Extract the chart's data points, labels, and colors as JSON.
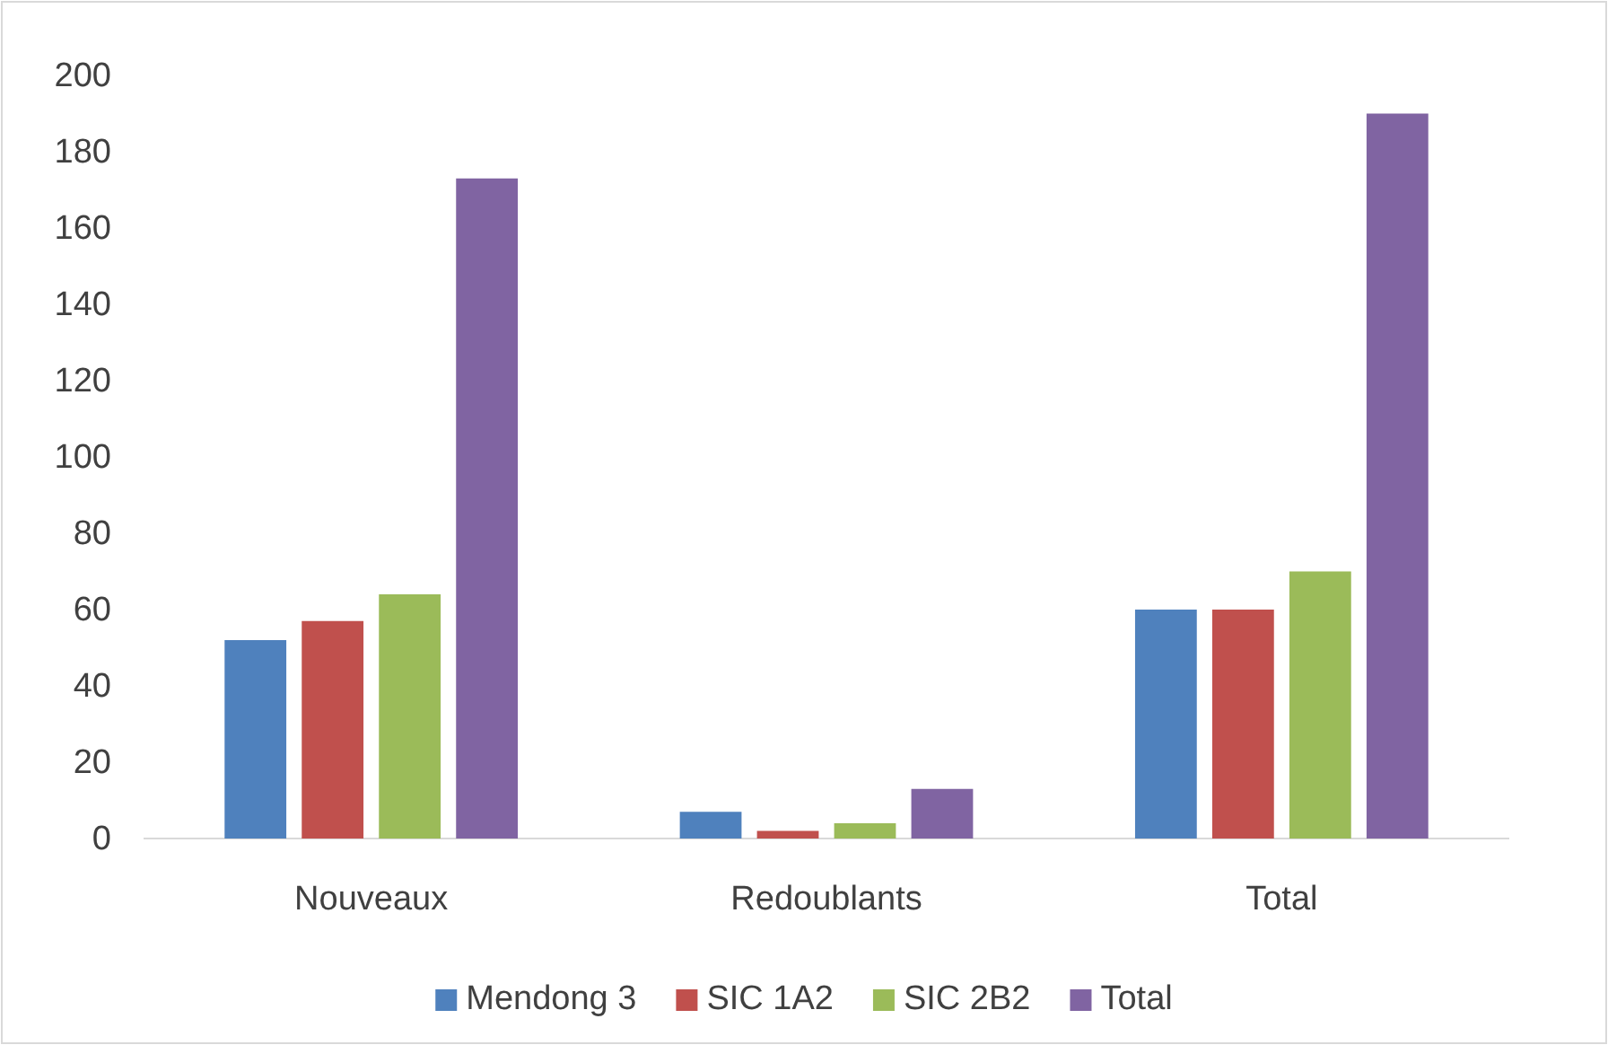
{
  "chart_data": {
    "type": "bar",
    "categories": [
      "Nouveaux",
      "Redoublants",
      "Total"
    ],
    "series": [
      {
        "name": "Mendong 3",
        "color": "#4f81bd",
        "values": [
          52,
          7,
          60
        ]
      },
      {
        "name": "SIC 1A2",
        "color": "#c0504d",
        "values": [
          57,
          2,
          60
        ]
      },
      {
        "name": "SIC 2B2",
        "color": "#9bbb59",
        "values": [
          64,
          4,
          70
        ]
      },
      {
        "name": "Total",
        "color": "#8064a2",
        "values": [
          173,
          13,
          190
        ]
      }
    ],
    "ylim": [
      0,
      200
    ],
    "yticks": [
      0,
      20,
      40,
      60,
      80,
      100,
      120,
      140,
      160,
      180,
      200
    ],
    "grid": false,
    "legend": "bottom"
  }
}
